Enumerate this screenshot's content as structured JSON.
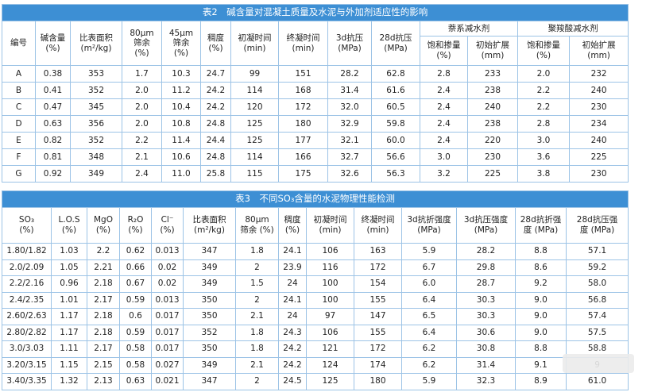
{
  "table2": {
    "title": "表2　碱含量对混凝土质量及水泥与外加剂适应性的影响",
    "headers": [
      "编号",
      "碱含量\n(%)",
      "比表面积\n(m²/kg)",
      "80μm\n筛余\n(%)",
      "45μm\n筛余\n(%)",
      "稠度\n(%)",
      "初凝时间\n(min)",
      "终凝时间\n(min)",
      "3d抗压\n(MPa)",
      "28d抗压\n(MPa)"
    ],
    "groups": [
      "萘系减水剂",
      "聚羧酸减水剂"
    ],
    "subheaders": [
      "饱和掺量\n(%)",
      "初始扩展\n(mm)",
      "饱和掺量\n(%)",
      "初始扩展\n(mm)"
    ],
    "rows": [
      [
        "A",
        "0.38",
        "353",
        "1.7",
        "10.3",
        "24.7",
        "99",
        "151",
        "28.2",
        "62.8",
        "2.8",
        "233",
        "2.0",
        "232"
      ],
      [
        "B",
        "0.41",
        "352",
        "2.0",
        "11.2",
        "24.2",
        "114",
        "168",
        "31.4",
        "61.6",
        "2.4",
        "238",
        "2.2",
        "240"
      ],
      [
        "C",
        "0.47",
        "345",
        "2.0",
        "10.4",
        "24.2",
        "120",
        "172",
        "32.0",
        "60.5",
        "2.4",
        "240",
        "2.2",
        "230"
      ],
      [
        "D",
        "0.63",
        "356",
        "2.0",
        "10.8",
        "24.8",
        "125",
        "180",
        "32.9",
        "59.8",
        "2.4",
        "238",
        "2.8",
        "234"
      ],
      [
        "E",
        "0.82",
        "352",
        "2.2",
        "11.4",
        "24.4",
        "125",
        "177",
        "32.1",
        "60.0",
        "2.4",
        "220",
        "3.0",
        "240"
      ],
      [
        "F",
        "0.81",
        "348",
        "2.1",
        "10.6",
        "24.8",
        "114",
        "166",
        "32.7",
        "56.6",
        "3.0",
        "230",
        "3.6",
        "225"
      ],
      [
        "G",
        "0.92",
        "349",
        "2.4",
        "11.0",
        "25.8",
        "115",
        "175",
        "32.6",
        "56.3",
        "3.2",
        "225",
        "3.8",
        "230"
      ]
    ]
  },
  "table3": {
    "title": "表3　不同SO₃含量的水泥物理性能检测",
    "headers": [
      "SO₃\n(%)",
      "L.O.S\n(%)",
      "MgO\n(%)",
      "R₂O\n(%)",
      "Cl⁻\n(%)",
      "比表面积\n(m²/kg)",
      "80μm\n筛余 (%)",
      "稠度\n(%)",
      "初凝时间\n(min)",
      "终凝时间\n(min)",
      "3d抗折强度\n(MPa)",
      "3d抗压强度\n(MPa)",
      "28d抗折强\n度 (MPa)",
      "28d抗压强\n度 (MPa)"
    ],
    "rows": [
      [
        "1.80/1.82",
        "1.03",
        "2.2",
        "0.62",
        "0.013",
        "347",
        "1.8",
        "24.1",
        "106",
        "163",
        "5.9",
        "28.2",
        "8.8",
        "57.1"
      ],
      [
        "2.0/2.09",
        "1.05",
        "2.21",
        "0.66",
        "0.02",
        "349",
        "2",
        "23.9",
        "116",
        "172",
        "6.7",
        "29.8",
        "8.6",
        "59.2"
      ],
      [
        "2.2/2.16",
        "0.96",
        "2.18",
        "0.67",
        "0.02",
        "349",
        "1.5",
        "24",
        "100",
        "154",
        "6.0",
        "28.7",
        "9.2",
        "58.0"
      ],
      [
        "2.4/2.35",
        "1.01",
        "2.17",
        "0.59",
        "0.013",
        "350",
        "2",
        "24.1",
        "100",
        "155",
        "6.4",
        "30.3",
        "9.0",
        "56.8"
      ],
      [
        "2.60/2.63",
        "1.17",
        "2.18",
        "0.6",
        "0.017",
        "350",
        "2.1",
        "24",
        "97",
        "147",
        "6.5",
        "30.3",
        "9.0",
        "57.4"
      ],
      [
        "2.80/2.82",
        "1.17",
        "2.18",
        "0.59",
        "0.017",
        "352",
        "1.8",
        "24.3",
        "106",
        "155",
        "6.4",
        "30.6",
        "9.0",
        "57.5"
      ],
      [
        "3.0/3.03",
        "1.11",
        "2.17",
        "0.58",
        "0.017",
        "350",
        "1.8",
        "24.2",
        "121",
        "172",
        "6.2",
        "30.8",
        "8.8",
        "58.8"
      ],
      [
        "3.20/3.15",
        "1.15",
        "2.15",
        "0.58",
        "0.027",
        "349",
        "2.1",
        "24.2",
        "124",
        "174",
        "6.2",
        "31.4",
        "9.1",
        "9"
      ],
      [
        "3.40/3.35",
        "1.32",
        "2.13",
        "0.63",
        "0.021",
        "347",
        "2",
        "24.5",
        "125",
        "180",
        "5.9",
        "32.3",
        "8.9",
        "61.0"
      ]
    ]
  }
}
